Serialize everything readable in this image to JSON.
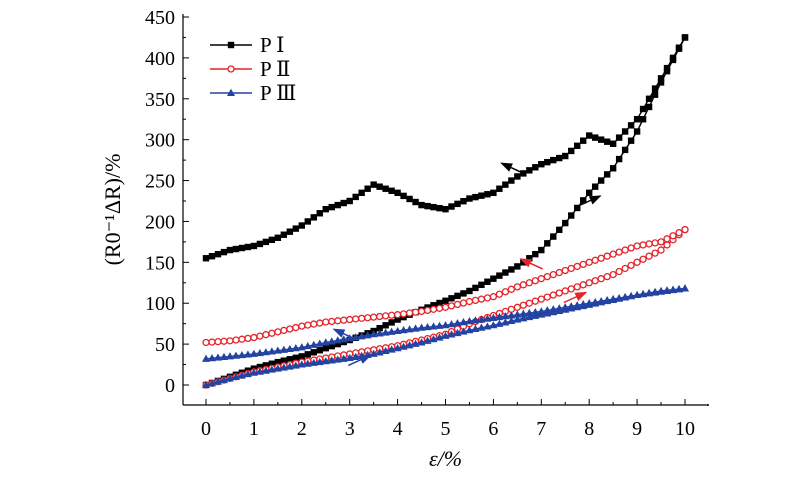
{
  "chart_data": {
    "type": "line",
    "title": "",
    "xlabel": "ε/%",
    "ylabel": "(R0⁻¹ΔR)/%",
    "xlim": [
      0,
      10
    ],
    "ylim": [
      0,
      450
    ],
    "x_ticks": [
      0,
      1,
      2,
      3,
      4,
      5,
      6,
      7,
      8,
      9,
      10
    ],
    "y_ticks": [
      0,
      50,
      100,
      150,
      200,
      250,
      300,
      350,
      400,
      450
    ],
    "grid": false,
    "legend_position": "top-left",
    "series": [
      {
        "name": "P Ⅰ",
        "color": "#000000",
        "marker": "square",
        "loading": {
          "x": [
            0,
            0.5,
            1,
            1.5,
            2,
            2.5,
            3,
            3.5,
            4,
            4.5,
            5,
            5.5,
            6,
            6.5,
            7,
            7.5,
            8,
            8.5,
            9,
            9.5,
            10
          ],
          "y": [
            0,
            10,
            20,
            28,
            35,
            45,
            55,
            66,
            80,
            92,
            103,
            115,
            130,
            145,
            165,
            198,
            235,
            265,
            310,
            370,
            425
          ]
        },
        "unloading": {
          "x": [
            10,
            9.5,
            9,
            8.5,
            8,
            7.5,
            7,
            6.5,
            6,
            5.5,
            5,
            4.5,
            4,
            3.5,
            3,
            2.5,
            2,
            1.5,
            1,
            0.5,
            0
          ],
          "y": [
            425,
            375,
            325,
            295,
            305,
            280,
            270,
            255,
            235,
            228,
            215,
            220,
            235,
            245,
            225,
            215,
            195,
            180,
            170,
            165,
            155
          ]
        }
      },
      {
        "name": "P Ⅱ",
        "color": "#e3242b",
        "marker": "open-circle",
        "loading": {
          "x": [
            0,
            0.5,
            1,
            1.5,
            2,
            2.5,
            3,
            3.5,
            4,
            4.5,
            5,
            5.5,
            6,
            6.5,
            7,
            7.5,
            8,
            8.5,
            9,
            9.5,
            10
          ],
          "y": [
            0,
            8,
            16,
            22,
            28,
            33,
            38,
            43,
            48,
            55,
            62,
            75,
            85,
            95,
            105,
            115,
            125,
            135,
            150,
            165,
            190
          ]
        },
        "unloading": {
          "x": [
            10,
            9.5,
            9,
            8.5,
            8,
            7.5,
            7,
            6.5,
            6,
            5.5,
            5,
            4.5,
            4,
            3.5,
            3,
            2.5,
            2,
            1.5,
            1,
            0.5,
            0
          ],
          "y": [
            190,
            175,
            170,
            160,
            150,
            140,
            130,
            120,
            108,
            102,
            95,
            90,
            86,
            83,
            80,
            77,
            72,
            65,
            58,
            54,
            52
          ]
        }
      },
      {
        "name": "P Ⅲ",
        "color": "#2343a3",
        "marker": "triangle",
        "loading": {
          "x": [
            0,
            0.5,
            1,
            1.5,
            2,
            2.5,
            3,
            3.5,
            4,
            4.5,
            5,
            5.5,
            6,
            6.5,
            7,
            7.5,
            8,
            8.5,
            9,
            9.5,
            10
          ],
          "y": [
            0,
            8,
            15,
            20,
            25,
            29,
            33,
            38,
            45,
            52,
            60,
            67,
            73,
            80,
            86,
            92,
            98,
            104,
            110,
            115,
            118
          ]
        },
        "unloading": {
          "x": [
            10,
            9.5,
            9,
            8.5,
            8,
            7.5,
            7,
            6.5,
            6,
            5.5,
            5,
            4.5,
            4,
            3.5,
            3,
            2.5,
            2,
            1.5,
            1,
            0.5,
            0
          ],
          "y": [
            118,
            114,
            110,
            105,
            100,
            95,
            90,
            86,
            82,
            78,
            73,
            70,
            66,
            62,
            57,
            52,
            46,
            42,
            38,
            35,
            32
          ]
        }
      }
    ],
    "annotations": [
      {
        "type": "arrow",
        "series": "P Ⅰ",
        "direction": "left",
        "x": 6.4,
        "y": 265
      },
      {
        "type": "arrow",
        "series": "P Ⅰ",
        "direction": "right",
        "x": 8.0,
        "y": 225
      },
      {
        "type": "arrow",
        "series": "P Ⅱ",
        "direction": "left",
        "x": 6.8,
        "y": 148
      },
      {
        "type": "arrow",
        "series": "P Ⅱ",
        "direction": "right",
        "x": 7.7,
        "y": 107
      },
      {
        "type": "arrow",
        "series": "P Ⅲ",
        "direction": "left",
        "x": 2.9,
        "y": 62
      },
      {
        "type": "arrow",
        "series": "P Ⅲ",
        "direction": "right",
        "x": 3.2,
        "y": 30
      }
    ]
  }
}
